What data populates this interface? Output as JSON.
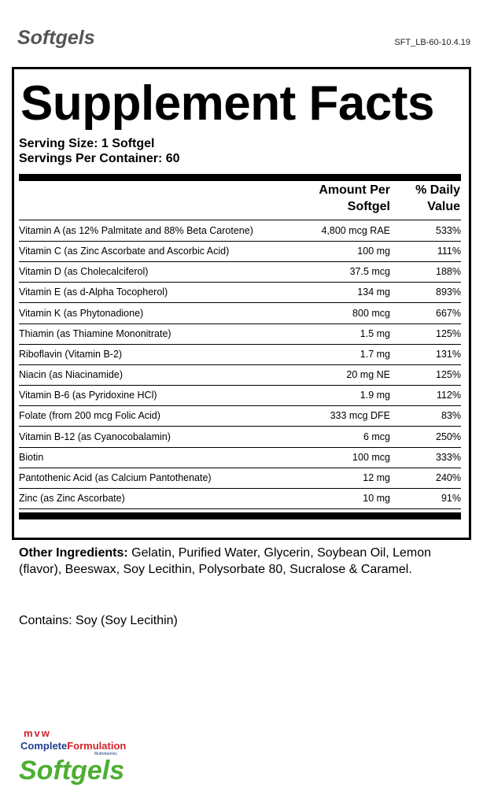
{
  "header": {
    "title": "Softgels",
    "code": "SFT_LB-60-10.4.19"
  },
  "facts": {
    "title": "Supplement Facts",
    "serving_size": "Serving Size: 1 Softgel",
    "servings_per_container": "Servings Per Container: 60",
    "columns": [
      "Amount Per Softgel",
      "% Daily Value"
    ],
    "rows": [
      [
        "Vitamin A (as 12% Palmitate and 88% Beta Carotene)",
        "4,800 mcg RAE",
        "533%"
      ],
      [
        "Vitamin C (as Zinc Ascorbate and Ascorbic Acid)",
        "100 mg",
        "111%"
      ],
      [
        "Vitamin D (as Cholecalciferol)",
        "37.5 mcg",
        "188%"
      ],
      [
        "Vitamin E (as d-Alpha Tocopherol)",
        "134 mg",
        "893%"
      ],
      [
        "Vitamin K (as Phytonadione)",
        "800 mcg",
        "667%"
      ],
      [
        "Thiamin (as Thiamine Mononitrate)",
        "1.5 mg",
        "125%"
      ],
      [
        "Riboflavin (Vitamin B-2)",
        "1.7 mg",
        "131%"
      ],
      [
        "Niacin (as Niacinamide)",
        "20 mg NE",
        "125%"
      ],
      [
        "Vitamin B-6 (as Pyridoxine HCl)",
        "1.9 mg",
        "112%"
      ],
      [
        "Folate (from 200 mcg Folic Acid)",
        "333 mcg DFE",
        "83%"
      ],
      [
        "Vitamin B-12 (as Cyanocobalamin)",
        "6 mcg",
        "250%"
      ],
      [
        "Biotin",
        "100 mcg",
        "333%"
      ],
      [
        "Pantothenic Acid (as Calcium Pantothenate)",
        "12 mg",
        "240%"
      ],
      [
        "Zinc (as Zinc Ascorbate)",
        "10 mg",
        "91%"
      ]
    ]
  },
  "other_ingredients": {
    "label": "Other Ingredients:",
    "text": "Gelatin, Purified Water, Glycerin, Soybean Oil, Lemon (flavor), Beeswax, Soy Lecithin, Polysorbate 80, Sucralose & Caramel."
  },
  "contains": "Contains: Soy (Soy Lecithin)",
  "logo": {
    "brand": "mvw",
    "name1": "Complete",
    "name2": "Formulation",
    "sub": "Multivitamins",
    "product": "Softgels"
  }
}
